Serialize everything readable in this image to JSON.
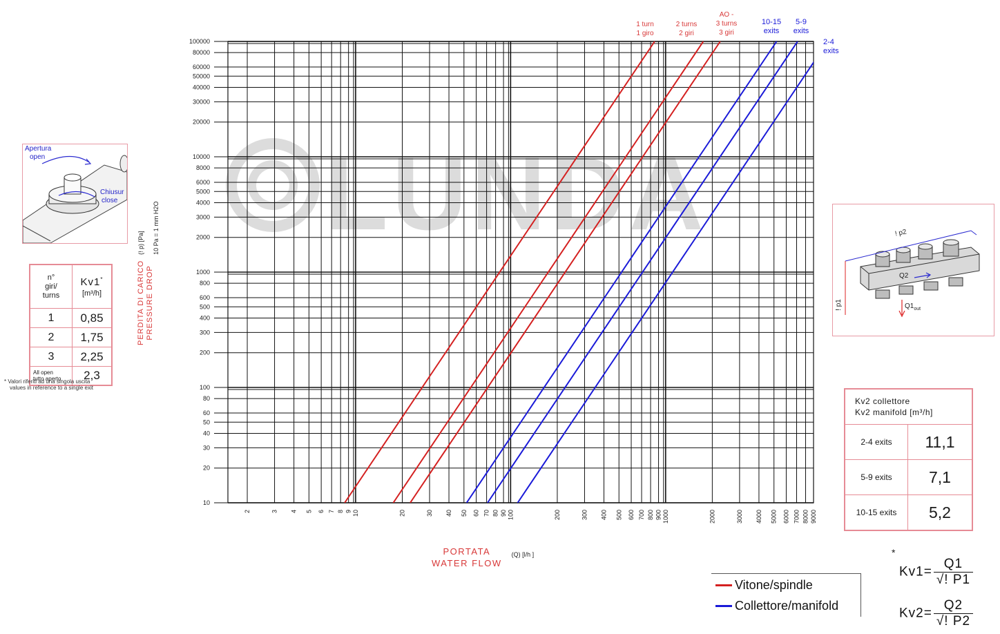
{
  "colors": {
    "spindle": "#d42020",
    "manifold": "#1a1ad8",
    "accent_red": "#d83838",
    "grid": "#111111"
  },
  "watermark": "LUNDA",
  "chart_data": {
    "type": "line",
    "scale": "log-log",
    "xlim": [
      1.5,
      9000
    ],
    "ylim": [
      10,
      100000
    ],
    "grid": true,
    "x_ticks": [
      "2",
      "3",
      "4",
      "5",
      "6",
      "7",
      "8",
      "9",
      "10",
      "20",
      "30",
      "40",
      "50",
      "60",
      "70",
      "80",
      "90",
      "100",
      "200",
      "300",
      "400",
      "500",
      "600",
      "700",
      "800",
      "900",
      "1000",
      "2000",
      "3000",
      "4000",
      "5000",
      "6000",
      "7000",
      "8000",
      "9000"
    ],
    "y_ticks": [
      "100000",
      "80000",
      "60000",
      "50000",
      "40000",
      "30000",
      "20000",
      "10000",
      "8000",
      "6000",
      "5000",
      "4000",
      "3000",
      "2000",
      "1000",
      "800",
      "600",
      "500",
      "400",
      "300",
      "200",
      "100",
      "80",
      "60",
      "50",
      "40",
      "30",
      "20",
      "10"
    ],
    "xlabel": {
      "line1": "PORTATA",
      "line2": "WATER FLOW",
      "unit": "(Q) [l/h ]"
    },
    "ylabel": {
      "line1": "PERDITA DI CARICO",
      "line2": "PRESSURE DROP",
      "unit": "(! p) [Pa]",
      "note": "10 Pa = 1 mm  H2O"
    },
    "series": [
      {
        "group": "spindle",
        "name_lines": [
          "1 turn",
          "1 giro"
        ],
        "x": [
          8.5,
          850
        ],
        "y": [
          10,
          100000
        ]
      },
      {
        "group": "spindle",
        "name_lines": [
          "2 turns",
          "2 giri"
        ],
        "x": [
          17.5,
          1750
        ],
        "y": [
          10,
          100000
        ]
      },
      {
        "group": "spindle",
        "name_lines": [
          "AO -",
          "3 turns",
          "3 giri"
        ],
        "x": [
          22.5,
          2250
        ],
        "y": [
          10,
          100000
        ]
      },
      {
        "group": "manifold",
        "name_lines": [
          "10-15",
          "exits"
        ],
        "x": [
          52,
          5200
        ],
        "y": [
          10,
          100000
        ]
      },
      {
        "group": "manifold",
        "name_lines": [
          "5-9",
          "exits"
        ],
        "x": [
          71,
          7100
        ],
        "y": [
          10,
          100000
        ]
      },
      {
        "group": "manifold",
        "name_lines": [
          "2-4",
          "exits"
        ],
        "x": [
          111,
          11100
        ],
        "y": [
          10,
          100000
        ]
      }
    ]
  },
  "valve_panel": {
    "open_label": "Apertura",
    "open_label2": "open",
    "close_label": "Chiusur",
    "close_label2": "close"
  },
  "kv1_table": {
    "header_col1": [
      "n°",
      "giri/",
      "turns"
    ],
    "header_col2": "Kv1",
    "header_col2_star": "*",
    "header_col2_unit": "[m³/h]",
    "rows": [
      {
        "turns": "1",
        "value": "0,85"
      },
      {
        "turns": "2",
        "value": "1,75"
      },
      {
        "turns": "3",
        "value": "2,25"
      }
    ],
    "last_row": {
      "turns_line1": "All open",
      "turns_line2": "tutto aperto",
      "value": "2,3"
    },
    "note_line1": "* Valori riferiti ad una singola uscita",
    "note_line2": "values in reference to a single exit"
  },
  "manifold_panel": {
    "p2_label": "! p2",
    "q2_label": "Q2",
    "p1_label": "! p1",
    "q1_label": "Q1",
    "q1_sub": "out"
  },
  "kv2_table": {
    "header_line1": "Kv2 collettore",
    "header_line2": "Kv2 manifold [m³/h]",
    "rows": [
      {
        "label": "2-4 exits",
        "value": "11,1"
      },
      {
        "label": "5-9 exits",
        "value": "7,1"
      },
      {
        "label": "10-15 exits",
        "value": "5,2"
      }
    ]
  },
  "legend": {
    "spindle_label": "Vitone/spindle",
    "manifold_label": "Collettore/manifold"
  },
  "formulas": {
    "star": "*",
    "kv1": {
      "left": "Kv1=",
      "num": "Q1",
      "den": "√! P1"
    },
    "kv2": {
      "left": "Kv2=",
      "num": "Q2",
      "den": "√! P2"
    }
  }
}
